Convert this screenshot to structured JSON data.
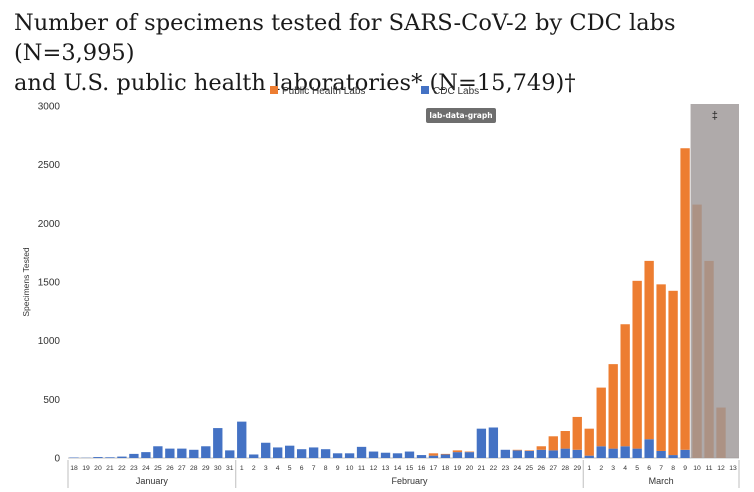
{
  "title_line1": "Number of specimens tested for SARS-CoV-2 by CDC labs (N=3,995)",
  "title_line2": "and U.S. public health laboratories* (N=15,749)†",
  "badge": "lab-data-graph",
  "chart_data": {
    "type": "bar",
    "stacked": true,
    "ylabel": "Specimens Tested",
    "ylim": [
      0,
      3000
    ],
    "yticks": [
      0,
      500,
      1000,
      1500,
      2000,
      2500,
      3000
    ],
    "legend_position": "top",
    "categories": [
      "18",
      "19",
      "20",
      "21",
      "22",
      "23",
      "24",
      "25",
      "26",
      "27",
      "28",
      "29",
      "30",
      "31",
      "1",
      "2",
      "3",
      "4",
      "5",
      "6",
      "7",
      "8",
      "9",
      "10",
      "11",
      "12",
      "13",
      "14",
      "15",
      "16",
      "17",
      "18",
      "19",
      "20",
      "21",
      "22",
      "23",
      "24",
      "25",
      "26",
      "27",
      "28",
      "29",
      "1",
      "2",
      "3",
      "4",
      "5",
      "6",
      "7",
      "8",
      "9",
      "10",
      "11",
      "12",
      "13"
    ],
    "months": [
      {
        "name": "January",
        "count": 14
      },
      {
        "name": "February",
        "count": 29
      },
      {
        "name": "March",
        "count": 13
      }
    ],
    "series": [
      {
        "name": "CDC Labs",
        "color": "#4472c4",
        "values": [
          4,
          2,
          8,
          6,
          12,
          35,
          50,
          100,
          80,
          80,
          70,
          100,
          255,
          65,
          310,
          30,
          130,
          90,
          105,
          75,
          90,
          75,
          40,
          40,
          95,
          55,
          45,
          40,
          55,
          25,
          20,
          30,
          50,
          50,
          250,
          260,
          70,
          65,
          60,
          70,
          65,
          80,
          70,
          20,
          100,
          80,
          100,
          80,
          160,
          60,
          25,
          70,
          0,
          0,
          0,
          0
        ]
      },
      {
        "name": "Public Health Labs",
        "color": "#ed7d31",
        "values": [
          0,
          0,
          0,
          0,
          0,
          0,
          0,
          0,
          0,
          0,
          0,
          0,
          0,
          0,
          0,
          0,
          0,
          0,
          0,
          0,
          0,
          0,
          0,
          0,
          0,
          0,
          0,
          0,
          0,
          0,
          20,
          5,
          15,
          5,
          0,
          0,
          0,
          5,
          5,
          30,
          120,
          150,
          280,
          230,
          500,
          720,
          1040,
          1430,
          1520,
          1420,
          1400,
          2570,
          2160,
          1680,
          430,
          0
        ]
      }
    ],
    "shaded_region": {
      "from": "10",
      "to": "13",
      "month": "March",
      "label": "‡",
      "color": "#9e9797"
    }
  }
}
